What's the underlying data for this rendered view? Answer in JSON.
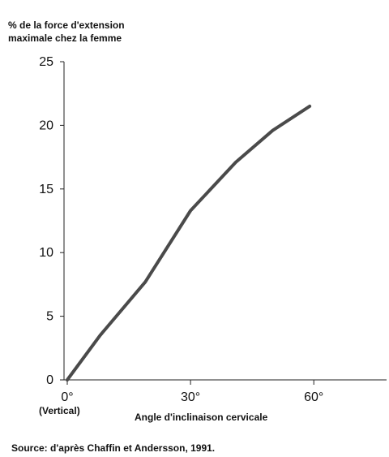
{
  "chart_data": {
    "type": "line",
    "ylabel_lines": [
      "% de la force d'extension",
      "maximale chez la femme"
    ],
    "xlabel": "Angle d'inclinaison cervicale",
    "x_ticks": [
      {
        "value": 0,
        "label": "0°"
      },
      {
        "value": 30,
        "label": "30°"
      },
      {
        "value": 60,
        "label": "60°"
      }
    ],
    "x_tick_sublabel": "(Vertical)",
    "y_ticks": [
      0,
      5,
      10,
      15,
      20,
      25
    ],
    "xlim": [
      0,
      76
    ],
    "ylim": [
      0,
      25
    ],
    "grid": false,
    "series": [
      {
        "x": [
          0,
          8,
          19,
          30,
          41,
          50,
          59
        ],
        "y": [
          0,
          3.5,
          7.7,
          13.3,
          17.1,
          19.6,
          21.5
        ],
        "color": "#4a4a4a"
      }
    ]
  },
  "source": "Source: d'après Chaffin et Andersson, 1991."
}
